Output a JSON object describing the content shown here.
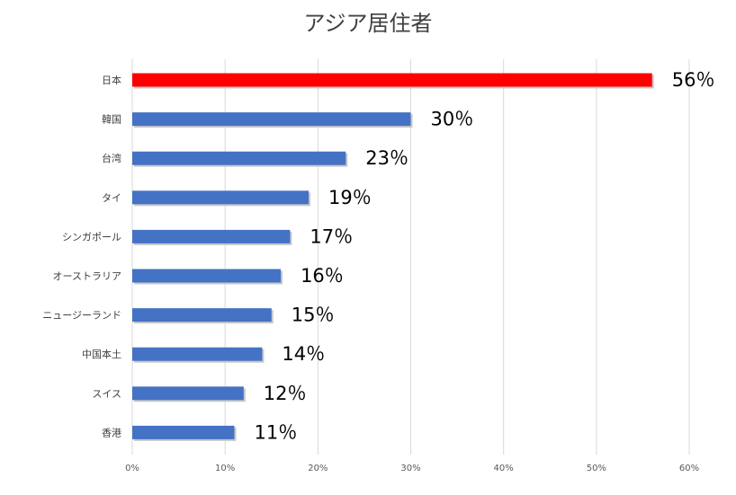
{
  "chart_data": {
    "type": "bar",
    "orientation": "horizontal",
    "title": "アジア居住者",
    "categories": [
      "日本",
      "韓国",
      "台湾",
      "タイ",
      "シンガポール",
      "オーストラリア",
      "ニュージーランド",
      "中国本土",
      "スイス",
      "香港"
    ],
    "values": [
      56,
      30,
      23,
      19,
      17,
      16,
      15,
      14,
      12,
      11
    ],
    "data_labels": [
      "56％",
      "30％",
      "23％",
      "19％",
      "17％",
      "16％",
      "15％",
      "14％",
      "12％",
      "11％"
    ],
    "xlim": [
      0,
      60
    ],
    "x_ticks": [
      "0%",
      "10%",
      "20%",
      "30%",
      "40%",
      "50%",
      "60%"
    ],
    "grid": true,
    "legend": "none",
    "colors": {
      "highlight": "#ff0000",
      "default": "#4472c4"
    },
    "highlight_index": 0
  }
}
